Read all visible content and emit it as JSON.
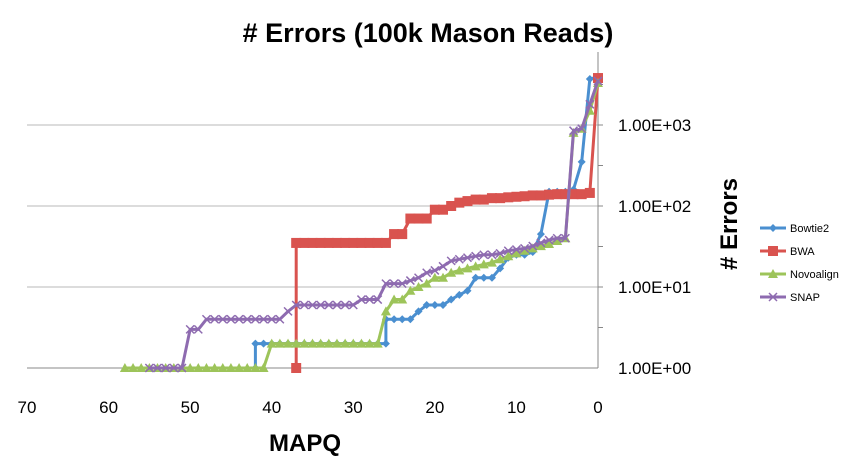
{
  "chart_data": {
    "type": "line",
    "title": "# Errors (100k Mason Reads)",
    "xlabel": "MAPQ",
    "ylabel": "# Errors",
    "x_reversed": true,
    "y_scale": "log",
    "y_axis_position": "right",
    "xlim": [
      0,
      70
    ],
    "ylim": [
      1,
      4000
    ],
    "x_ticks": [
      "70",
      "60",
      "50",
      "40",
      "30",
      "20",
      "10",
      "0"
    ],
    "y_ticks": [
      "1.00E+00",
      "1.00E+01",
      "1.00E+02",
      "1.00E+03"
    ],
    "grid": "horizontal",
    "legend_position": "right",
    "colors": {
      "Bowtie2": "#4a8fd0",
      "BWA": "#d9534f",
      "Novoalign": "#9dc45a",
      "SNAP": "#8e6bb0"
    },
    "series": [
      {
        "name": "Bowtie2",
        "marker": "diamond",
        "points": [
          [
            42,
            1
          ],
          [
            42,
            2
          ],
          [
            41,
            2
          ],
          [
            40,
            2
          ],
          [
            39,
            2
          ],
          [
            38,
            2
          ],
          [
            37,
            2
          ],
          [
            36,
            2
          ],
          [
            35,
            2
          ],
          [
            34,
            2
          ],
          [
            33,
            2
          ],
          [
            32,
            2
          ],
          [
            31,
            2
          ],
          [
            30,
            2
          ],
          [
            29,
            2
          ],
          [
            28,
            2
          ],
          [
            27,
            2
          ],
          [
            26,
            2
          ],
          [
            26,
            4
          ],
          [
            25,
            4
          ],
          [
            24,
            4
          ],
          [
            23,
            4
          ],
          [
            22,
            5
          ],
          [
            21,
            6
          ],
          [
            20,
            6
          ],
          [
            19,
            6
          ],
          [
            18,
            7
          ],
          [
            17,
            8
          ],
          [
            16,
            9
          ],
          [
            15,
            13
          ],
          [
            14,
            13
          ],
          [
            13,
            13
          ],
          [
            12,
            17
          ],
          [
            11,
            23
          ],
          [
            10,
            25
          ],
          [
            9,
            25
          ],
          [
            8,
            27
          ],
          [
            7,
            45
          ],
          [
            6,
            150
          ],
          [
            5,
            150
          ],
          [
            4,
            150
          ],
          [
            3,
            160
          ],
          [
            2,
            350
          ],
          [
            1,
            3700
          ],
          [
            0,
            3900
          ]
        ]
      },
      {
        "name": "BWA",
        "marker": "square",
        "points": [
          [
            37,
            1
          ],
          [
            37,
            35
          ],
          [
            36,
            35
          ],
          [
            35,
            35
          ],
          [
            34,
            35
          ],
          [
            33,
            35
          ],
          [
            32,
            35
          ],
          [
            31,
            35
          ],
          [
            30,
            35
          ],
          [
            29,
            35
          ],
          [
            28,
            35
          ],
          [
            27,
            35
          ],
          [
            26,
            35
          ],
          [
            25,
            45
          ],
          [
            24,
            45
          ],
          [
            23,
            70
          ],
          [
            22,
            70
          ],
          [
            21,
            70
          ],
          [
            20,
            90
          ],
          [
            19,
            90
          ],
          [
            18,
            100
          ],
          [
            17,
            110
          ],
          [
            16,
            115
          ],
          [
            15,
            120
          ],
          [
            14,
            120
          ],
          [
            13,
            125
          ],
          [
            12,
            125
          ],
          [
            11,
            128
          ],
          [
            10,
            130
          ],
          [
            9,
            132
          ],
          [
            8,
            135
          ],
          [
            7,
            135
          ],
          [
            6,
            138
          ],
          [
            5,
            140
          ],
          [
            4,
            140
          ],
          [
            3,
            140
          ],
          [
            2,
            140
          ],
          [
            1,
            145
          ],
          [
            0,
            3800
          ]
        ]
      },
      {
        "name": "Novoalign",
        "marker": "triangle",
        "points": [
          [
            58,
            1
          ],
          [
            57,
            1
          ],
          [
            56,
            1
          ],
          [
            55,
            1
          ],
          [
            54,
            1
          ],
          [
            53,
            1
          ],
          [
            52,
            1
          ],
          [
            51,
            1
          ],
          [
            50,
            1
          ],
          [
            49,
            1
          ],
          [
            48,
            1
          ],
          [
            47,
            1
          ],
          [
            46,
            1
          ],
          [
            45,
            1
          ],
          [
            44,
            1
          ],
          [
            43,
            1
          ],
          [
            42,
            1
          ],
          [
            41,
            1
          ],
          [
            40,
            2
          ],
          [
            39,
            2
          ],
          [
            38,
            2
          ],
          [
            37,
            2
          ],
          [
            36,
            2
          ],
          [
            35,
            2
          ],
          [
            34,
            2
          ],
          [
            33,
            2
          ],
          [
            32,
            2
          ],
          [
            31,
            2
          ],
          [
            30,
            2
          ],
          [
            29,
            2
          ],
          [
            28,
            2
          ],
          [
            27,
            2
          ],
          [
            26,
            5
          ],
          [
            25,
            7
          ],
          [
            24,
            7
          ],
          [
            23,
            9
          ],
          [
            22,
            10
          ],
          [
            21,
            11
          ],
          [
            20,
            13
          ],
          [
            19,
            13
          ],
          [
            18,
            15
          ],
          [
            17,
            16
          ],
          [
            16,
            17
          ],
          [
            15,
            18
          ],
          [
            14,
            19
          ],
          [
            13,
            20
          ],
          [
            12,
            22
          ],
          [
            11,
            24
          ],
          [
            10,
            26
          ],
          [
            9,
            28
          ],
          [
            8,
            30
          ],
          [
            7,
            32
          ],
          [
            6,
            34
          ],
          [
            5,
            37
          ],
          [
            4,
            40
          ],
          [
            3,
            800
          ],
          [
            2,
            900
          ],
          [
            1,
            1500
          ],
          [
            0,
            3300
          ]
        ]
      },
      {
        "name": "SNAP",
        "marker": "x",
        "points": [
          [
            55,
            1
          ],
          [
            54,
            1
          ],
          [
            53,
            1
          ],
          [
            52,
            1
          ],
          [
            51,
            1
          ],
          [
            50,
            3
          ],
          [
            49,
            3
          ],
          [
            48,
            4
          ],
          [
            47,
            4
          ],
          [
            46,
            4
          ],
          [
            45,
            4
          ],
          [
            44,
            4
          ],
          [
            43,
            4
          ],
          [
            42,
            4
          ],
          [
            41,
            4
          ],
          [
            40,
            4
          ],
          [
            39,
            4
          ],
          [
            38,
            5
          ],
          [
            37,
            6
          ],
          [
            36,
            6
          ],
          [
            35,
            6
          ],
          [
            34,
            6
          ],
          [
            33,
            6
          ],
          [
            32,
            6
          ],
          [
            31,
            6
          ],
          [
            30,
            6
          ],
          [
            29,
            7
          ],
          [
            28,
            7
          ],
          [
            27,
            7
          ],
          [
            26,
            11
          ],
          [
            25,
            11
          ],
          [
            24,
            11
          ],
          [
            23,
            12
          ],
          [
            22,
            13
          ],
          [
            21,
            15
          ],
          [
            20,
            16
          ],
          [
            19,
            18
          ],
          [
            18,
            21
          ],
          [
            17,
            22
          ],
          [
            16,
            23
          ],
          [
            15,
            24
          ],
          [
            14,
            25
          ],
          [
            13,
            25
          ],
          [
            12,
            26
          ],
          [
            11,
            28
          ],
          [
            10,
            29
          ],
          [
            9,
            30
          ],
          [
            8,
            32
          ],
          [
            7,
            35
          ],
          [
            6,
            38
          ],
          [
            5,
            40
          ],
          [
            4,
            40
          ],
          [
            3,
            850
          ],
          [
            2,
            900
          ],
          [
            1,
            1800
          ],
          [
            0,
            3500
          ]
        ]
      }
    ]
  }
}
